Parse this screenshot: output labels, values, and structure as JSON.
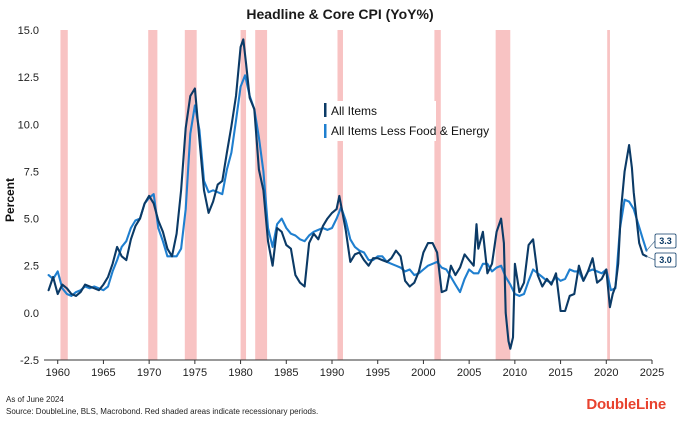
{
  "chart_data": {
    "type": "line",
    "title": "Headline & Core CPI (YoY%)",
    "xlabel": "",
    "ylabel": "Percent",
    "xlim": [
      1958.5,
      2025
    ],
    "ylim": [
      -2.5,
      15.0
    ],
    "xticks": [
      1960,
      1965,
      1970,
      1975,
      1980,
      1985,
      1990,
      1995,
      2000,
      2005,
      2010,
      2015,
      2020,
      2025
    ],
    "yticks": [
      -2.5,
      0.0,
      2.5,
      5.0,
      7.5,
      10.0,
      12.5,
      15.0
    ],
    "ytick_labels": [
      "-2.5",
      "0.0",
      "2.5",
      "5.0",
      "7.5",
      "10.0",
      "12.5",
      "15.0"
    ],
    "recessions": [
      [
        1960.3,
        1961.1
      ],
      [
        1969.9,
        1970.9
      ],
      [
        1973.9,
        1975.2
      ],
      [
        1980.0,
        1980.6
      ],
      [
        1981.6,
        1982.9
      ],
      [
        1990.6,
        1991.2
      ],
      [
        2001.2,
        2001.9
      ],
      [
        2007.9,
        2009.5
      ],
      [
        2020.1,
        2020.4
      ]
    ],
    "series": [
      {
        "name": "All Items",
        "color": "#0b3a66",
        "end_label": "3.0",
        "x": [
          1959.0,
          1959.5,
          1960.0,
          1960.5,
          1961.0,
          1961.5,
          1962.0,
          1962.5,
          1963.0,
          1963.5,
          1964.0,
          1964.5,
          1965.0,
          1965.5,
          1966.0,
          1966.5,
          1967.0,
          1967.5,
          1968.0,
          1968.5,
          1969.0,
          1969.5,
          1970.0,
          1970.5,
          1971.0,
          1971.5,
          1972.0,
          1972.5,
          1973.0,
          1973.5,
          1974.0,
          1974.5,
          1975.0,
          1975.5,
          1976.0,
          1976.5,
          1977.0,
          1977.5,
          1978.0,
          1978.5,
          1979.0,
          1979.5,
          1980.0,
          1980.3,
          1980.6,
          1981.0,
          1981.5,
          1982.0,
          1982.5,
          1983.0,
          1983.5,
          1984.0,
          1984.5,
          1985.0,
          1985.5,
          1986.0,
          1986.5,
          1987.0,
          1987.5,
          1988.0,
          1988.5,
          1989.0,
          1989.5,
          1990.0,
          1990.5,
          1990.8,
          1991.0,
          1991.5,
          1992.0,
          1992.5,
          1993.0,
          1993.5,
          1994.0,
          1994.5,
          1995.0,
          1995.5,
          1996.0,
          1996.5,
          1997.0,
          1997.5,
          1998.0,
          1998.5,
          1999.0,
          1999.5,
          2000.0,
          2000.5,
          2001.0,
          2001.5,
          2002.0,
          2002.5,
          2003.0,
          2003.5,
          2004.0,
          2004.5,
          2005.0,
          2005.5,
          2005.8,
          2006.0,
          2006.5,
          2007.0,
          2007.5,
          2008.0,
          2008.5,
          2008.8,
          2009.0,
          2009.3,
          2009.5,
          2009.8,
          2010.0,
          2010.5,
          2011.0,
          2011.5,
          2012.0,
          2012.5,
          2013.0,
          2013.5,
          2014.0,
          2014.5,
          2015.0,
          2015.5,
          2016.0,
          2016.5,
          2017.0,
          2017.5,
          2018.0,
          2018.5,
          2019.0,
          2019.5,
          2020.0,
          2020.4,
          2020.7,
          2021.0,
          2021.3,
          2021.6,
          2022.0,
          2022.5,
          2022.8,
          2023.0,
          2023.3,
          2023.6,
          2024.0,
          2024.4
        ],
        "y": [
          1.2,
          1.9,
          1.0,
          1.5,
          1.3,
          1.0,
          0.9,
          1.1,
          1.5,
          1.4,
          1.3,
          1.2,
          1.5,
          1.9,
          2.6,
          3.5,
          3.0,
          2.8,
          3.9,
          4.6,
          5.0,
          5.8,
          6.2,
          5.8,
          4.9,
          4.3,
          3.4,
          3.0,
          4.2,
          6.5,
          9.8,
          11.5,
          11.9,
          9.2,
          6.5,
          5.3,
          5.9,
          6.8,
          7.0,
          8.5,
          9.9,
          11.5,
          14.1,
          14.5,
          13.2,
          11.4,
          10.8,
          7.6,
          6.5,
          3.8,
          2.5,
          4.5,
          4.3,
          3.6,
          3.4,
          2.0,
          1.6,
          1.4,
          3.7,
          4.2,
          3.9,
          4.6,
          5.0,
          5.3,
          5.5,
          6.2,
          5.7,
          4.4,
          2.7,
          3.1,
          3.2,
          2.8,
          2.5,
          2.9,
          2.9,
          2.8,
          2.7,
          2.9,
          3.3,
          3.0,
          1.7,
          1.4,
          1.6,
          2.2,
          3.2,
          3.7,
          3.7,
          3.2,
          1.1,
          1.2,
          2.5,
          2.0,
          2.4,
          3.1,
          2.8,
          2.5,
          4.7,
          3.4,
          4.3,
          2.1,
          2.6,
          4.3,
          5.0,
          3.7,
          0.0,
          -1.5,
          -1.9,
          -1.3,
          2.6,
          1.1,
          1.6,
          3.6,
          3.9,
          2.0,
          1.4,
          1.8,
          1.5,
          2.1,
          0.1,
          0.1,
          0.9,
          1.0,
          2.5,
          1.7,
          2.2,
          2.9,
          1.6,
          1.8,
          2.3,
          0.3,
          1.0,
          1.4,
          2.6,
          5.4,
          7.5,
          8.9,
          7.7,
          6.4,
          5.0,
          3.7,
          3.1,
          3.0
        ]
      },
      {
        "name": "All Items Less Food & Energy",
        "color": "#1f7fcf",
        "end_label": "3.3",
        "x": [
          1959.0,
          1959.5,
          1960.0,
          1960.5,
          1961.0,
          1961.5,
          1962.0,
          1962.5,
          1963.0,
          1963.5,
          1964.0,
          1964.5,
          1965.0,
          1965.5,
          1966.0,
          1966.5,
          1967.0,
          1967.5,
          1968.0,
          1968.5,
          1969.0,
          1969.5,
          1970.0,
          1970.5,
          1971.0,
          1971.5,
          1972.0,
          1972.5,
          1973.0,
          1973.5,
          1974.0,
          1974.5,
          1975.0,
          1975.5,
          1976.0,
          1976.5,
          1977.0,
          1977.5,
          1978.0,
          1978.5,
          1979.0,
          1979.5,
          1980.0,
          1980.5,
          1981.0,
          1981.5,
          1982.0,
          1982.5,
          1983.0,
          1983.5,
          1984.0,
          1984.5,
          1985.0,
          1985.5,
          1986.0,
          1986.5,
          1987.0,
          1987.5,
          1988.0,
          1988.5,
          1989.0,
          1989.5,
          1990.0,
          1990.5,
          1991.0,
          1991.5,
          1992.0,
          1992.5,
          1993.0,
          1993.5,
          1994.0,
          1994.5,
          1995.0,
          1995.5,
          1996.0,
          1996.5,
          1997.0,
          1997.5,
          1998.0,
          1998.5,
          1999.0,
          1999.5,
          2000.0,
          2000.5,
          2001.0,
          2001.5,
          2002.0,
          2002.5,
          2003.0,
          2003.5,
          2004.0,
          2004.5,
          2005.0,
          2005.5,
          2006.0,
          2006.5,
          2007.0,
          2007.5,
          2008.0,
          2008.5,
          2009.0,
          2009.5,
          2010.0,
          2010.5,
          2011.0,
          2011.5,
          2012.0,
          2012.5,
          2013.0,
          2013.5,
          2014.0,
          2014.5,
          2015.0,
          2015.5,
          2016.0,
          2016.5,
          2017.0,
          2017.5,
          2018.0,
          2018.5,
          2019.0,
          2019.5,
          2020.0,
          2020.5,
          2021.0,
          2021.5,
          2022.0,
          2022.5,
          2023.0,
          2023.5,
          2024.0,
          2024.4
        ],
        "y": [
          2.0,
          1.8,
          2.2,
          1.3,
          1.0,
          0.9,
          1.1,
          1.2,
          1.4,
          1.3,
          1.4,
          1.3,
          1.2,
          1.4,
          2.2,
          2.8,
          3.5,
          3.8,
          4.5,
          4.9,
          5.0,
          5.8,
          6.1,
          6.3,
          4.5,
          3.8,
          3.0,
          3.0,
          3.0,
          3.4,
          5.5,
          9.5,
          11.0,
          9.7,
          7.0,
          6.4,
          6.5,
          6.4,
          6.3,
          7.6,
          8.5,
          10.2,
          12.0,
          12.6,
          11.5,
          10.8,
          9.3,
          7.5,
          4.5,
          3.5,
          4.7,
          5.0,
          4.5,
          4.2,
          4.1,
          3.9,
          3.8,
          4.1,
          4.3,
          4.4,
          4.5,
          4.4,
          4.5,
          5.0,
          5.6,
          4.9,
          3.9,
          3.5,
          3.3,
          3.2,
          2.8,
          2.8,
          3.0,
          3.0,
          2.7,
          2.6,
          2.5,
          2.4,
          2.2,
          2.3,
          2.0,
          2.1,
          2.3,
          2.5,
          2.6,
          2.7,
          2.4,
          2.3,
          1.9,
          1.5,
          1.1,
          1.8,
          2.3,
          2.1,
          2.1,
          2.6,
          2.6,
          2.2,
          2.4,
          2.5,
          1.9,
          1.5,
          1.0,
          0.9,
          1.0,
          1.7,
          2.3,
          2.1,
          1.9,
          1.7,
          1.6,
          1.9,
          1.7,
          1.8,
          2.3,
          2.2,
          2.2,
          1.7,
          2.2,
          2.3,
          2.2,
          2.1,
          2.3,
          1.2,
          1.3,
          4.5,
          6.0,
          5.9,
          5.5,
          4.7,
          3.9,
          3.3
        ]
      }
    ]
  },
  "footer": {
    "as_of": "As of June 2024",
    "source": "Source: DoubleLine, BLS, Macrobond. Red shaded areas indicate recessionary periods.",
    "brand": "DoubleLine"
  }
}
